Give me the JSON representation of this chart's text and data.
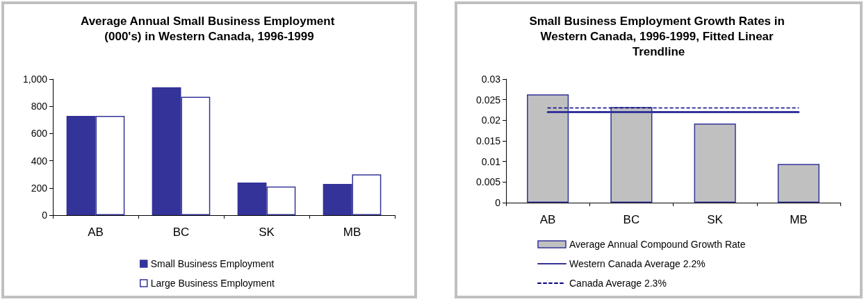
{
  "chart_data": [
    {
      "type": "bar",
      "title": "Average Annual Small Business Employment (000's) in Western Canada, 1996-1999",
      "categories": [
        "AB",
        "BC",
        "SK",
        "MB"
      ],
      "series": [
        {
          "name": "Small Business Employment",
          "color": "#333399",
          "values": [
            730,
            940,
            240,
            230
          ]
        },
        {
          "name": "Large Business Employment",
          "color": "#ffffff",
          "values": [
            730,
            870,
            210,
            300
          ]
        }
      ],
      "ylim": [
        0,
        1000
      ],
      "yticks": [
        0,
        {
          "value": 200,
          "label": "200"
        },
        {
          "value": 400,
          "label": "400"
        },
        {
          "value": 600,
          "label": "600"
        },
        {
          "value": 800,
          "label": "800"
        },
        {
          "value": 1000,
          "label": "1,000"
        }
      ],
      "grid": false,
      "legend": "bottom"
    },
    {
      "type": "bar",
      "title": "Small Business Employment Growth Rates in Western Canada, 1996-1999, Fitted Linear Trendline",
      "categories": [
        "AB",
        "BC",
        "SK",
        "MB"
      ],
      "series": [
        {
          "name": "Average Annual Compound Growth Rate",
          "color": "#c0c0c0",
          "values": [
            0.0263,
            0.0232,
            0.0192,
            0.0094
          ]
        },
        {
          "type": "line",
          "name": "Western Canada Average 2.2%",
          "color": "#333399",
          "values": [
            0.022,
            0.022,
            0.022,
            0.022
          ],
          "line_style": "solid"
        },
        {
          "type": "line",
          "name": "Canada Average 2.3%",
          "color": "#000080",
          "values": [
            0.023,
            0.023,
            0.023,
            0.023
          ],
          "line_style": "dashed"
        }
      ],
      "ylim": [
        0,
        0.03
      ],
      "yticks": [
        0,
        0.005,
        0.01,
        0.015,
        0.02,
        0.025,
        0.03
      ],
      "grid": false,
      "legend": "bottom"
    }
  ]
}
